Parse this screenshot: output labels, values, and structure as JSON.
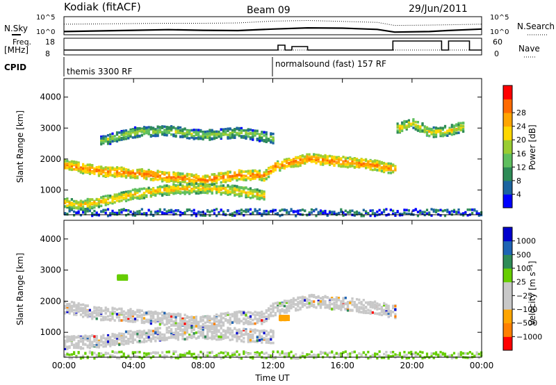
{
  "header": {
    "title": "Kodiak (fitACF)",
    "beam": "Beam 09",
    "date": "29/Jun/2011"
  },
  "top_panels": {
    "nsky_label": "N.Sky",
    "nsearch_label": "N.Search",
    "nsky_ticks": [
      "10^5",
      "10^0"
    ],
    "nsearch_ticks": [
      "10^5",
      "10^0"
    ],
    "freq_label_1": "Freq.",
    "freq_label_2": "[MHz]",
    "freq_ticks": [
      "18",
      "8"
    ],
    "nave_label": "Nave",
    "nave_ticks": [
      "60",
      "0"
    ],
    "cpid_label": "CPID",
    "cpid_segments": [
      {
        "text": "themis 3300 RF",
        "start_hour": 0
      },
      {
        "text": "normalsound (fast) 157 RF",
        "start_hour": 12
      }
    ],
    "freq_trace": [
      [
        0,
        10.5
      ],
      [
        12.3,
        10.5
      ],
      [
        12.3,
        14
      ],
      [
        12.7,
        14
      ],
      [
        12.7,
        10.5
      ],
      [
        13.1,
        10.5
      ],
      [
        13.1,
        13
      ],
      [
        14,
        13
      ],
      [
        14,
        10.5
      ],
      [
        18.9,
        10.5
      ],
      [
        18.9,
        17
      ],
      [
        21.7,
        17
      ],
      [
        21.7,
        10.5
      ],
      [
        22.1,
        10.5
      ],
      [
        22.1,
        17
      ],
      [
        23.3,
        17
      ],
      [
        23.3,
        10.5
      ],
      [
        24,
        10.5
      ]
    ],
    "nsky_trace": [
      [
        0,
        0.6
      ],
      [
        2,
        0.8
      ],
      [
        4,
        1.0
      ],
      [
        6,
        1.2
      ],
      [
        8,
        1.0
      ],
      [
        10,
        0.9
      ],
      [
        12,
        1.4
      ],
      [
        14,
        1.8
      ],
      [
        16,
        1.7
      ],
      [
        18,
        1.3
      ],
      [
        19,
        0.4
      ],
      [
        21,
        0.6
      ],
      [
        22,
        0.9
      ],
      [
        24,
        1.4
      ]
    ],
    "nsearch_trace": [
      [
        0,
        3.0
      ],
      [
        2,
        3.1
      ],
      [
        4,
        3.2
      ],
      [
        6,
        3.3
      ],
      [
        8,
        3.3
      ],
      [
        10,
        3.4
      ],
      [
        12,
        4.0
      ],
      [
        14,
        4.2
      ],
      [
        16,
        3.9
      ],
      [
        18,
        3.6
      ],
      [
        19,
        2.6
      ],
      [
        21,
        2.7
      ],
      [
        22,
        2.8
      ],
      [
        24,
        3.0
      ]
    ]
  },
  "chart_data": [
    {
      "type": "heatmap",
      "title": "",
      "xlabel": "Time UT",
      "ylabel": "Slant Range [km]",
      "xlim_hours": [
        0,
        24
      ],
      "ylim": [
        200,
        4600
      ],
      "x_ticks": [
        "00:00",
        "04:00",
        "08:00",
        "12:00",
        "16:00",
        "20:00",
        "00:00"
      ],
      "y_ticks": [
        1000,
        2000,
        3000,
        4000
      ],
      "colorbar_label": "Power [dB]",
      "colorbar_ticks": [
        4,
        8,
        12,
        16,
        20,
        24,
        28
      ],
      "colors": [
        "#0000ff",
        "#1c64a0",
        "#2e8b57",
        "#5fbf5f",
        "#9acd32",
        "#ffd700",
        "#ffa500",
        "#ff6a00",
        "#ff0000"
      ],
      "features": [
        {
          "name": "main band",
          "path": [
            [
              0,
              1850
            ],
            [
              2,
              1640
            ],
            [
              4,
              1580
            ],
            [
              6,
              1460
            ],
            [
              8,
              1350
            ],
            [
              10,
              1520
            ],
            [
              11.5,
              1500
            ],
            [
              12,
              1780
            ],
            [
              14,
              2050
            ],
            [
              16,
              1950
            ],
            [
              18,
              1820
            ],
            [
              19,
              1700
            ]
          ],
          "intensity": 24
        },
        {
          "name": "lower band",
          "path": [
            [
              0,
              620
            ],
            [
              1,
              560
            ],
            [
              2,
              650
            ],
            [
              4,
              900
            ],
            [
              6,
              1050
            ],
            [
              8,
              1100
            ],
            [
              10,
              1000
            ],
            [
              11.5,
              850
            ]
          ],
          "intensity": 20
        },
        {
          "name": "upper echoes",
          "path": [
            [
              2,
              2600
            ],
            [
              4,
              2900
            ],
            [
              6,
              2950
            ],
            [
              8,
              2800
            ],
            [
              10,
              2900
            ],
            [
              12,
              2700
            ]
          ],
          "intensity": 14
        },
        {
          "name": "far range cluster",
          "path": [
            [
              19,
              3000
            ],
            [
              20,
              3200
            ],
            [
              21,
              2900
            ],
            [
              22,
              2950
            ],
            [
              23,
              3100
            ]
          ],
          "intensity": 18
        }
      ]
    },
    {
      "type": "heatmap",
      "title": "",
      "xlabel": "Time UT",
      "ylabel": "Slant Range [km]",
      "xlim_hours": [
        0,
        24
      ],
      "ylim": [
        200,
        4600
      ],
      "x_ticks": [
        "00:00",
        "04:00",
        "08:00",
        "12:00",
        "16:00",
        "20:00",
        "00:00"
      ],
      "y_ticks": [
        1000,
        2000,
        3000,
        4000
      ],
      "colorbar_label": "Velocity [m s⁻¹]",
      "colorbar_ticks": [
        "1000",
        "500",
        "100",
        "25",
        "−25",
        "−100",
        "−500",
        "−1000"
      ],
      "colors": [
        "#0000cd",
        "#1e64b4",
        "#2e8b57",
        "#66cd00",
        "#c8c8c8",
        "#c8c8c8",
        "#ffa500",
        "#ff7f00",
        "#ff0000"
      ],
      "features": [
        {
          "name": "ground scatter band",
          "path": [
            [
              0,
              1850
            ],
            [
              2,
              1640
            ],
            [
              4,
              1580
            ],
            [
              6,
              1460
            ],
            [
              8,
              1350
            ],
            [
              10,
              1520
            ],
            [
              11.5,
              1500
            ],
            [
              12,
              1780
            ],
            [
              14,
              2050
            ],
            [
              16,
              1950
            ],
            [
              18,
              1820
            ],
            [
              19,
              1700
            ]
          ],
          "value": 0
        },
        {
          "name": "near range gs",
          "path": [
            [
              0,
              700
            ],
            [
              2,
              750
            ],
            [
              4,
              900
            ],
            [
              6,
              1000
            ],
            [
              8,
              1050
            ],
            [
              10,
              950
            ],
            [
              12,
              900
            ]
          ],
          "value": 0
        },
        {
          "name": "negative patch",
          "point": [
            12.6,
            1500
          ],
          "value": -300
        },
        {
          "name": "green patch",
          "point": [
            3.3,
            2800
          ],
          "value": 100
        }
      ]
    }
  ]
}
